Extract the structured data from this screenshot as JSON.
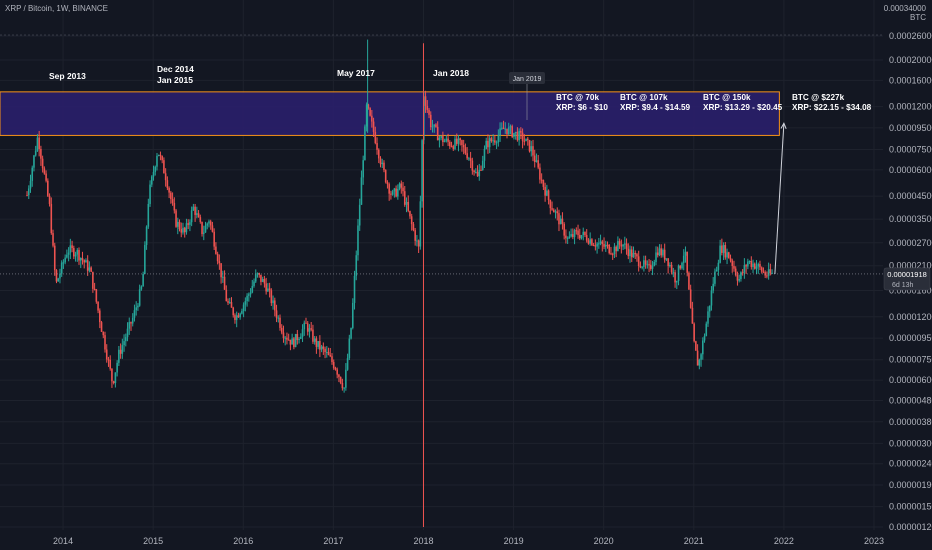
{
  "header": {
    "symbol": "XRP / Bitcoin, 1W, BINANCE",
    "top_tick": "0.00034000",
    "unit": "BTC"
  },
  "price_label": {
    "value": "0.00001918",
    "countdown": "6d 13h"
  },
  "annotations": {
    "events": [
      {
        "text": "Sep 2013",
        "date": 2013.67
      },
      {
        "text": "Dec 2014",
        "date": 2014.92
      },
      {
        "text": "Jan 2015",
        "date": 2015.0
      },
      {
        "text": "May 2017",
        "date": 2017.37
      },
      {
        "text": "Jan 2018",
        "date": 2018.03
      },
      {
        "text": "Jan 2019",
        "date": 2019.02
      }
    ],
    "targets": [
      {
        "btc": "BTC @ 70k",
        "xrp": "XRP: $6 - $10"
      },
      {
        "btc": "BTC @ 107k",
        "xrp": "XRP: $9.4 - $14.59"
      },
      {
        "btc": "BTC @ 150k",
        "xrp": "XRP: $13.29 - $20.45"
      },
      {
        "btc": "BTC @ $227k",
        "xrp": "XRP: $22.15 - $34.08"
      }
    ]
  },
  "colors": {
    "up": "#26a69a",
    "down": "#ef5350",
    "zone_fill": "#2a1f6b",
    "zone_border": "#f7931a",
    "background": "#131722"
  },
  "chart_data": {
    "type": "candlestick",
    "title": "XRP / Bitcoin, 1W, BINANCE",
    "y_scale": "log",
    "y_unit": "BTC",
    "y_ticks": [
      "0.00026000",
      "0.00020000",
      "0.00016000",
      "0.00012000",
      "0.00009500",
      "0.00007500",
      "0.00006000",
      "0.00004500",
      "0.00003500",
      "0.00002700",
      "0.00002100",
      "0.00001600",
      "0.00001200",
      "0.00000950",
      "0.00000750",
      "0.00000600",
      "0.00000480",
      "0.00000380",
      "0.00000300",
      "0.00000240",
      "0.00000190",
      "0.00000150",
      "0.00000120"
    ],
    "x_ticks": [
      "2014",
      "2015",
      "2016",
      "2017",
      "2018",
      "2019",
      "2020",
      "2021",
      "2022",
      "2023"
    ],
    "xlim": [
      2013.3,
      2023.1
    ],
    "resistance_zone": {
      "low": 8.75e-05,
      "high": 0.000141,
      "from": 2013.3,
      "to": 2021.95
    },
    "current_price": 1.918e-05,
    "projection": {
      "from": [
        2021.9,
        1.918e-05
      ],
      "to": [
        2022.0,
        0.0001
      ]
    },
    "candles": [
      {
        "date": 2013.6,
        "price": 4.55e-05
      },
      {
        "date": 2013.72,
        "price": 8.7e-05
      },
      {
        "date": 2013.85,
        "price": 4e-05
      },
      {
        "date": 2013.92,
        "price": 1.7e-05
      },
      {
        "date": 2014.05,
        "price": 2.5e-05
      },
      {
        "date": 2014.15,
        "price": 2.45e-05
      },
      {
        "date": 2014.3,
        "price": 2e-05
      },
      {
        "date": 2014.42,
        "price": 1.1e-05
      },
      {
        "date": 2014.55,
        "price": 5.8e-06
      },
      {
        "date": 2014.62,
        "price": 8e-06
      },
      {
        "date": 2014.78,
        "price": 1.2e-05
      },
      {
        "date": 2014.88,
        "price": 1.7e-05
      },
      {
        "date": 2014.95,
        "price": 4.5e-05
      },
      {
        "date": 2015.05,
        "price": 7.5e-05
      },
      {
        "date": 2015.15,
        "price": 5.4e-05
      },
      {
        "date": 2015.25,
        "price": 3.4e-05
      },
      {
        "date": 2015.35,
        "price": 3e-05
      },
      {
        "date": 2015.45,
        "price": 4e-05
      },
      {
        "date": 2015.55,
        "price": 3e-05
      },
      {
        "date": 2015.62,
        "price": 3.5e-05
      },
      {
        "date": 2015.7,
        "price": 2.5e-05
      },
      {
        "date": 2015.82,
        "price": 1.4e-05
      },
      {
        "date": 2015.92,
        "price": 1.2e-05
      },
      {
        "date": 2016.05,
        "price": 1.5e-05
      },
      {
        "date": 2016.15,
        "price": 1.9e-05
      },
      {
        "date": 2016.25,
        "price": 1.7e-05
      },
      {
        "date": 2016.35,
        "price": 1.3e-05
      },
      {
        "date": 2016.45,
        "price": 1e-05
      },
      {
        "date": 2016.55,
        "price": 9e-06
      },
      {
        "date": 2016.7,
        "price": 1.1e-05
      },
      {
        "date": 2016.8,
        "price": 9e-06
      },
      {
        "date": 2016.92,
        "price": 8e-06
      },
      {
        "date": 2017.02,
        "price": 7e-06
      },
      {
        "date": 2017.12,
        "price": 5.5e-06
      },
      {
        "date": 2017.2,
        "price": 1.1e-05
      },
      {
        "date": 2017.28,
        "price": 3.5e-05
      },
      {
        "date": 2017.37,
        "price": 0.00012
      },
      {
        "date": 2017.45,
        "price": 9e-05
      },
      {
        "date": 2017.55,
        "price": 6e-05
      },
      {
        "date": 2017.65,
        "price": 4.5e-05
      },
      {
        "date": 2017.75,
        "price": 5e-05
      },
      {
        "date": 2017.85,
        "price": 3.5e-05
      },
      {
        "date": 2017.95,
        "price": 2.5e-05
      },
      {
        "date": 2018.0,
        "price": 0.00014
      },
      {
        "date": 2018.08,
        "price": 0.0001
      },
      {
        "date": 2018.18,
        "price": 8.5e-05
      },
      {
        "date": 2018.3,
        "price": 8e-05
      },
      {
        "date": 2018.4,
        "price": 8e-05
      },
      {
        "date": 2018.5,
        "price": 7e-05
      },
      {
        "date": 2018.6,
        "price": 5.5e-05
      },
      {
        "date": 2018.7,
        "price": 8e-05
      },
      {
        "date": 2018.8,
        "price": 8.5e-05
      },
      {
        "date": 2018.9,
        "price": 9.5e-05
      },
      {
        "date": 2019.0,
        "price": 9e-05
      },
      {
        "date": 2019.1,
        "price": 8.5e-05
      },
      {
        "date": 2019.2,
        "price": 7.5e-05
      },
      {
        "date": 2019.3,
        "price": 5.5e-05
      },
      {
        "date": 2019.4,
        "price": 4.2e-05
      },
      {
        "date": 2019.5,
        "price": 3.5e-05
      },
      {
        "date": 2019.6,
        "price": 2.8e-05
      },
      {
        "date": 2019.7,
        "price": 3e-05
      },
      {
        "date": 2019.8,
        "price": 2.9e-05
      },
      {
        "date": 2019.9,
        "price": 2.7e-05
      },
      {
        "date": 2020.0,
        "price": 2.6e-05
      },
      {
        "date": 2020.1,
        "price": 2.5e-05
      },
      {
        "date": 2020.2,
        "price": 2.7e-05
      },
      {
        "date": 2020.3,
        "price": 2.4e-05
      },
      {
        "date": 2020.4,
        "price": 2.2e-05
      },
      {
        "date": 2020.5,
        "price": 2e-05
      },
      {
        "date": 2020.6,
        "price": 2.5e-05
      },
      {
        "date": 2020.7,
        "price": 2.3e-05
      },
      {
        "date": 2020.8,
        "price": 1.8e-05
      },
      {
        "date": 2020.9,
        "price": 2.5e-05
      },
      {
        "date": 2021.0,
        "price": 9e-06
      },
      {
        "date": 2021.05,
        "price": 7e-06
      },
      {
        "date": 2021.12,
        "price": 1e-05
      },
      {
        "date": 2021.22,
        "price": 1.8e-05
      },
      {
        "date": 2021.3,
        "price": 2.6e-05
      },
      {
        "date": 2021.4,
        "price": 2.3e-05
      },
      {
        "date": 2021.5,
        "price": 1.8e-05
      },
      {
        "date": 2021.6,
        "price": 2.2e-05
      },
      {
        "date": 2021.7,
        "price": 2.1e-05
      },
      {
        "date": 2021.8,
        "price": 1.9e-05
      },
      {
        "date": 2021.87,
        "price": 1.92e-05
      }
    ]
  }
}
